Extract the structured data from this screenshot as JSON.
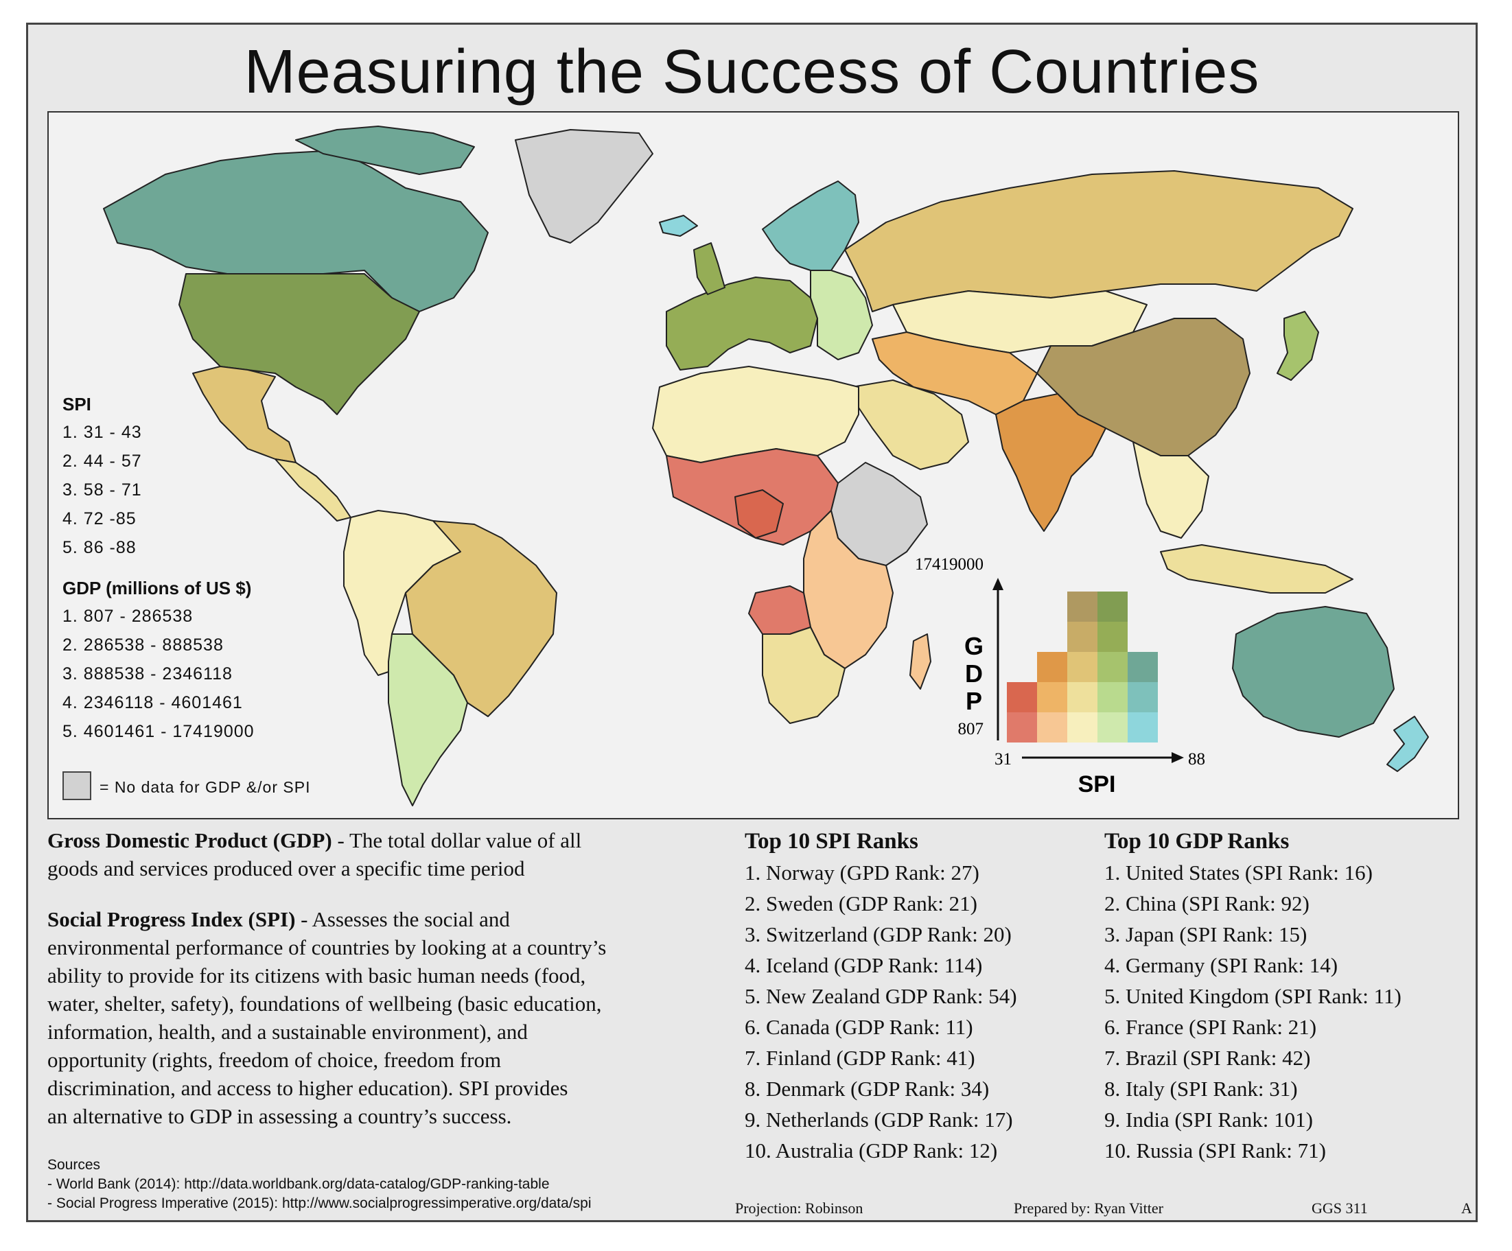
{
  "title": "Measuring the Success of Countries",
  "colors": {
    "frame_bg": "#e8e8e8",
    "map_bg": "#f2f2f2",
    "no_data": "#d2d2d2",
    "bivariate_grid": [
      [
        "#e07a6a",
        "#f7c794",
        "#f7efbd",
        "#cfe9ad",
        "#8ed6dc"
      ],
      [
        "#d9674f",
        "#eeb466",
        "#eee09c",
        "#b9da8e",
        "#7ec1bb"
      ],
      [
        null,
        "#df9848",
        "#e0c477",
        "#a6c36d",
        "#6fa796"
      ],
      [
        null,
        null,
        "#c8ac67",
        "#95ad56",
        null
      ],
      [
        null,
        null,
        "#af9961",
        "#819d52",
        null
      ]
    ]
  },
  "map": {
    "legend": {
      "spi_title": "SPI",
      "spi_classes": [
        "1. 31 - 43",
        "2. 44 - 57",
        "3. 58 - 71",
        "4. 72 -85",
        "5. 86 -88"
      ],
      "gdp_title": "GDP (millions of US $)",
      "gdp_classes": [
        "1. 807 - 286538",
        "2. 286538 - 888538",
        "3. 888538 - 2346118",
        "4. 2346118 - 4601461",
        "5. 4601461 - 17419000"
      ],
      "no_data_label": "= No data for GDP &/or SPI"
    },
    "bivariate_legend": {
      "gdp_max": "17419000",
      "gdp_min": "807",
      "gdp_axis": "G D P",
      "spi_min": "31",
      "spi_max": "88",
      "spi_axis": "SPI"
    },
    "regions": [
      {
        "name": "canada",
        "fill": "#6fa796"
      },
      {
        "name": "united-states",
        "fill": "#819d52"
      },
      {
        "name": "mexico",
        "fill": "#e0c477"
      },
      {
        "name": "central-america",
        "fill": "#eee09c"
      },
      {
        "name": "greenland",
        "fill": "#d2d2d2"
      },
      {
        "name": "brazil",
        "fill": "#e0c477"
      },
      {
        "name": "andean-south-america",
        "fill": "#f7efbd"
      },
      {
        "name": "argentina-chile",
        "fill": "#cfe9ad"
      },
      {
        "name": "western-europe",
        "fill": "#95ad56"
      },
      {
        "name": "scandinavia",
        "fill": "#7ec1bb"
      },
      {
        "name": "eastern-europe",
        "fill": "#cfe9ad"
      },
      {
        "name": "russia",
        "fill": "#e0c477"
      },
      {
        "name": "kazakhstan-mongolia",
        "fill": "#f7efbd"
      },
      {
        "name": "china",
        "fill": "#af9961"
      },
      {
        "name": "india",
        "fill": "#df9848"
      },
      {
        "name": "middle-east",
        "fill": "#eeb466"
      },
      {
        "name": "saudi-arabia",
        "fill": "#eee09c"
      },
      {
        "name": "north-africa",
        "fill": "#f7efbd"
      },
      {
        "name": "sahel-central-africa",
        "fill": "#e07a6a"
      },
      {
        "name": "nigeria",
        "fill": "#d9674f"
      },
      {
        "name": "horn-of-africa",
        "fill": "#d2d2d2"
      },
      {
        "name": "east-africa",
        "fill": "#f7c794"
      },
      {
        "name": "angola",
        "fill": "#e07a6a"
      },
      {
        "name": "southern-africa",
        "fill": "#eee09c"
      },
      {
        "name": "southeast-asia",
        "fill": "#f7efbd"
      },
      {
        "name": "indonesia",
        "fill": "#eee09c"
      },
      {
        "name": "japan",
        "fill": "#a6c36d"
      },
      {
        "name": "australia",
        "fill": "#6fa796"
      },
      {
        "name": "new-zealand",
        "fill": "#8ed6dc"
      },
      {
        "name": "iceland",
        "fill": "#8ed6dc"
      }
    ]
  },
  "definitions": {
    "gdp_term": "Gross Domestic Product (GDP)",
    "gdp_text_1": " - The total dollar value of all",
    "gdp_text_2": "goods and services produced over a specific time period",
    "spi_term": "Social Progress Index (SPI)",
    "spi_text_1": " - Assesses the social and",
    "spi_lines": [
      "environmental performance of countries by looking at a country’s",
      "ability to provide for its citizens with basic human needs (food,",
      "water, shelter, safety), foundations of wellbeing (basic education,",
      "information, health, and a sustainable environment), and",
      "opportunity (rights, freedom of choice, freedom from",
      "discrimination, and access to higher education). SPI provides",
      "an alternative to GDP in assessing a country’s success."
    ]
  },
  "top_spi": {
    "title": "Top 10 SPI Ranks",
    "items": [
      "1. Norway (GPD Rank: 27)",
      "2. Sweden (GDP Rank: 21)",
      "3. Switzerland (GDP Rank: 20)",
      "4. Iceland (GDP Rank: 114)",
      "5. New Zealand GDP Rank: 54)",
      "6. Canada (GDP Rank: 11)",
      "7. Finland (GDP Rank: 41)",
      "8. Denmark (GDP Rank: 34)",
      "9. Netherlands (GDP Rank: 17)",
      "10. Australia (GDP Rank: 12)"
    ]
  },
  "top_gdp": {
    "title": "Top 10 GDP Ranks",
    "items": [
      "1. United States (SPI Rank: 16)",
      "2. China (SPI Rank: 92)",
      "3. Japan (SPI Rank: 15)",
      "4. Germany (SPI Rank: 14)",
      "5. United Kingdom (SPI Rank: 11)",
      "6. France (SPI Rank: 21)",
      "7. Brazil (SPI Rank: 42)",
      "8. Italy (SPI Rank: 31)",
      "9. India (SPI Rank: 101)",
      "10. Russia (SPI Rank: 71)"
    ]
  },
  "sources": {
    "heading": "Sources",
    "lines": [
      "- World Bank (2014): http://data.worldbank.org/data-catalog/GDP-ranking-table",
      "- Social Progress Imperative (2015): http://www.socialprogressimperative.org/data/spi"
    ]
  },
  "footer": {
    "projection": "Projection: Robinson",
    "prepared": "Prepared by: Ryan Vitter",
    "course": "GGS 311",
    "version": "A"
  }
}
